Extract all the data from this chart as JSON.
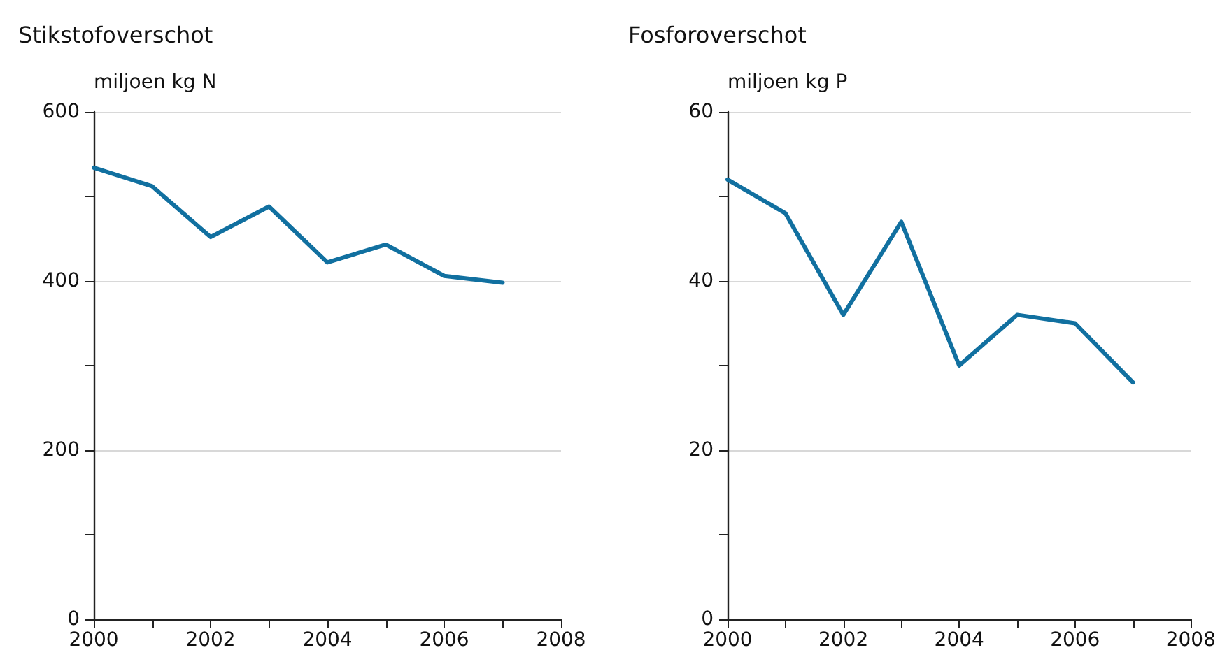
{
  "chart_data": [
    {
      "type": "line",
      "title": "Stikstofoverschot",
      "ylabel": "miljoen kg N",
      "x": [
        2000,
        2001,
        2002,
        2003,
        2004,
        2005,
        2006,
        2007
      ],
      "series": [
        {
          "color": "#1170a0",
          "values": [
            534,
            512,
            452,
            488,
            422,
            443,
            406,
            398
          ]
        }
      ],
      "xlim": [
        2000,
        2008
      ],
      "xticks": [
        2000,
        {
          "value": 2001,
          "label": null
        },
        2002,
        {
          "value": 2003,
          "label": null
        },
        2004,
        {
          "value": 2005,
          "label": null
        },
        2006,
        {
          "value": 2007,
          "label": null
        },
        2008
      ],
      "ylim": [
        0,
        600
      ],
      "yticks": [
        0,
        {
          "value": 100,
          "label": null
        },
        200,
        {
          "value": 300,
          "label": null
        },
        400,
        {
          "value": 500,
          "label": null
        },
        600
      ],
      "grid": "y",
      "marker": "none",
      "line_style": "solid"
    },
    {
      "type": "line",
      "title": "Fosforoverschot",
      "ylabel": "miljoen kg P",
      "x": [
        2000,
        2001,
        2002,
        2003,
        2004,
        2005,
        2006,
        2007
      ],
      "series": [
        {
          "color": "#1170a0",
          "values": [
            52,
            48,
            36,
            47,
            30,
            36,
            35,
            28
          ]
        }
      ],
      "xlim": [
        2000,
        2008
      ],
      "xticks": [
        2000,
        {
          "value": 2001,
          "label": null
        },
        2002,
        {
          "value": 2003,
          "label": null
        },
        2004,
        {
          "value": 2005,
          "label": null
        },
        2006,
        {
          "value": 2007,
          "label": null
        },
        2008
      ],
      "ylim": [
        0,
        60
      ],
      "yticks": [
        0,
        {
          "value": 10,
          "label": null
        },
        20,
        {
          "value": 30,
          "label": null
        },
        40,
        {
          "value": 50,
          "label": null
        },
        60
      ],
      "grid": "y",
      "marker": "none",
      "line_style": "solid"
    }
  ]
}
